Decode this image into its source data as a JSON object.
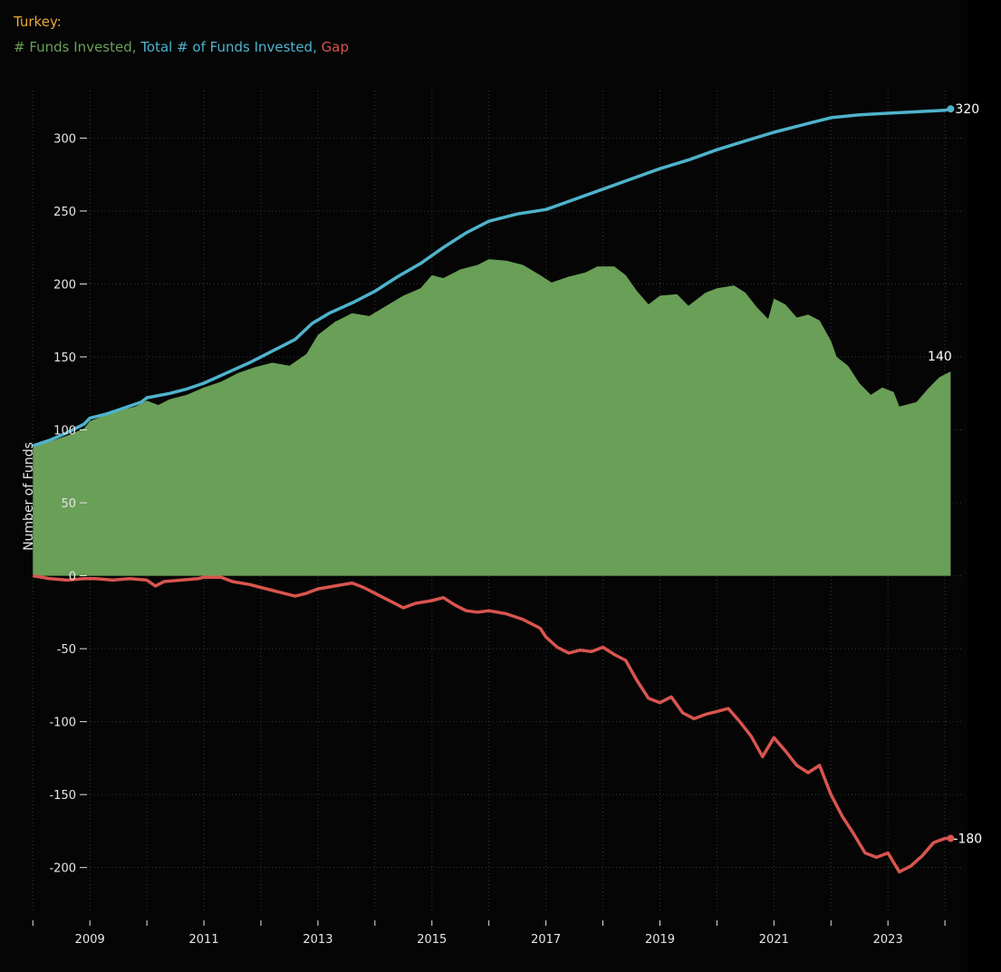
{
  "header": {
    "title": "Turkey:",
    "legend_sep": ", "
  },
  "colors": {
    "title": "#e8a935",
    "funds": "#6a9f57",
    "total": "#4fb3cc",
    "gap": "#d9554f",
    "grid": "#3a3a3a",
    "axis_text": "#e6e6e6"
  },
  "chart_data": {
    "type": "line",
    "title": "Turkey:",
    "xlabel": "",
    "ylabel": "Number of Funds",
    "ylim": [
      -230,
      340
    ],
    "xlim": [
      2007.9,
      2024.3
    ],
    "yticks": [
      300,
      250,
      200,
      150,
      100,
      50,
      0,
      -50,
      -100,
      -150,
      -200
    ],
    "xticks": [
      2008,
      2009,
      2010,
      2011,
      2012,
      2013,
      2014,
      2015,
      2016,
      2017,
      2018,
      2019,
      2020,
      2021,
      2022,
      2023,
      2024
    ],
    "xtick_labels": [
      "",
      "2009",
      "",
      "2011",
      "",
      "2013",
      "",
      "2015",
      "",
      "2017",
      "",
      "2019",
      "",
      "2021",
      "",
      "2023",
      ""
    ],
    "grid": true,
    "series": [
      {
        "name": "# Funds Invested",
        "style": "area",
        "end_label": "140",
        "points": [
          [
            2008.0,
            89
          ],
          [
            2008.3,
            92
          ],
          [
            2008.6,
            96
          ],
          [
            2008.9,
            101
          ],
          [
            2009.0,
            106
          ],
          [
            2009.2,
            109
          ],
          [
            2009.5,
            113
          ],
          [
            2009.8,
            116
          ],
          [
            2010.0,
            120
          ],
          [
            2010.2,
            117
          ],
          [
            2010.4,
            121
          ],
          [
            2010.7,
            124
          ],
          [
            2011.0,
            129
          ],
          [
            2011.3,
            133
          ],
          [
            2011.6,
            139
          ],
          [
            2011.9,
            143
          ],
          [
            2012.2,
            146
          ],
          [
            2012.5,
            144
          ],
          [
            2012.8,
            152
          ],
          [
            2013.0,
            165
          ],
          [
            2013.3,
            174
          ],
          [
            2013.6,
            180
          ],
          [
            2013.9,
            178
          ],
          [
            2014.2,
            185
          ],
          [
            2014.5,
            192
          ],
          [
            2014.8,
            197
          ],
          [
            2015.0,
            206
          ],
          [
            2015.2,
            204
          ],
          [
            2015.5,
            210
          ],
          [
            2015.8,
            213
          ],
          [
            2016.0,
            217
          ],
          [
            2016.3,
            216
          ],
          [
            2016.6,
            213
          ],
          [
            2016.9,
            206
          ],
          [
            2017.1,
            201
          ],
          [
            2017.4,
            205
          ],
          [
            2017.7,
            208
          ],
          [
            2017.9,
            212
          ],
          [
            2018.2,
            212
          ],
          [
            2018.4,
            206
          ],
          [
            2018.6,
            195
          ],
          [
            2018.8,
            186
          ],
          [
            2019.0,
            192
          ],
          [
            2019.3,
            193
          ],
          [
            2019.5,
            185
          ],
          [
            2019.8,
            194
          ],
          [
            2020.0,
            197
          ],
          [
            2020.3,
            199
          ],
          [
            2020.5,
            194
          ],
          [
            2020.7,
            184
          ],
          [
            2020.9,
            176
          ],
          [
            2021.0,
            190
          ],
          [
            2021.2,
            186
          ],
          [
            2021.4,
            177
          ],
          [
            2021.6,
            179
          ],
          [
            2021.8,
            175
          ],
          [
            2022.0,
            161
          ],
          [
            2022.1,
            150
          ],
          [
            2022.3,
            144
          ],
          [
            2022.5,
            132
          ],
          [
            2022.7,
            124
          ],
          [
            2022.9,
            129
          ],
          [
            2023.1,
            126
          ],
          [
            2023.2,
            116
          ],
          [
            2023.5,
            119
          ],
          [
            2023.7,
            128
          ],
          [
            2023.9,
            136
          ],
          [
            2024.1,
            140
          ]
        ]
      },
      {
        "name": "Total # of Funds Invested",
        "style": "line",
        "end_label": "320",
        "points": [
          [
            2008.0,
            89
          ],
          [
            2008.3,
            93
          ],
          [
            2008.6,
            98
          ],
          [
            2008.9,
            104
          ],
          [
            2009.0,
            108
          ],
          [
            2009.3,
            111
          ],
          [
            2009.6,
            115
          ],
          [
            2009.9,
            119
          ],
          [
            2010.0,
            122
          ],
          [
            2010.4,
            125
          ],
          [
            2010.7,
            128
          ],
          [
            2011.0,
            132
          ],
          [
            2011.4,
            139
          ],
          [
            2011.8,
            146
          ],
          [
            2012.2,
            154
          ],
          [
            2012.6,
            162
          ],
          [
            2012.9,
            173
          ],
          [
            2013.2,
            180
          ],
          [
            2013.6,
            187
          ],
          [
            2014.0,
            195
          ],
          [
            2014.4,
            205
          ],
          [
            2014.8,
            214
          ],
          [
            2015.2,
            225
          ],
          [
            2015.6,
            235
          ],
          [
            2016.0,
            243
          ],
          [
            2016.5,
            248
          ],
          [
            2017.0,
            251
          ],
          [
            2017.5,
            258
          ],
          [
            2018.0,
            265
          ],
          [
            2018.5,
            272
          ],
          [
            2019.0,
            279
          ],
          [
            2019.5,
            285
          ],
          [
            2020.0,
            292
          ],
          [
            2020.5,
            298
          ],
          [
            2021.0,
            304
          ],
          [
            2021.5,
            309
          ],
          [
            2022.0,
            314
          ],
          [
            2022.5,
            316
          ],
          [
            2023.0,
            317
          ],
          [
            2023.5,
            318
          ],
          [
            2024.0,
            319
          ],
          [
            2024.1,
            320
          ]
        ]
      },
      {
        "name": "Gap",
        "style": "line",
        "end_label": "-180",
        "points": [
          [
            2008.0,
            0
          ],
          [
            2008.3,
            -2
          ],
          [
            2008.6,
            -3
          ],
          [
            2008.9,
            -2
          ],
          [
            2009.1,
            -2
          ],
          [
            2009.4,
            -3
          ],
          [
            2009.7,
            -2
          ],
          [
            2010.0,
            -3
          ],
          [
            2010.15,
            -7
          ],
          [
            2010.3,
            -4
          ],
          [
            2010.6,
            -3
          ],
          [
            2010.9,
            -2
          ],
          [
            2011.0,
            -1
          ],
          [
            2011.3,
            -1
          ],
          [
            2011.5,
            -4
          ],
          [
            2011.8,
            -6
          ],
          [
            2012.0,
            -8
          ],
          [
            2012.3,
            -11
          ],
          [
            2012.6,
            -14
          ],
          [
            2012.8,
            -12
          ],
          [
            2013.0,
            -9
          ],
          [
            2013.3,
            -7
          ],
          [
            2013.6,
            -5
          ],
          [
            2013.8,
            -8
          ],
          [
            2014.0,
            -12
          ],
          [
            2014.2,
            -16
          ],
          [
            2014.5,
            -22
          ],
          [
            2014.7,
            -19
          ],
          [
            2015.0,
            -17
          ],
          [
            2015.2,
            -15
          ],
          [
            2015.4,
            -20
          ],
          [
            2015.6,
            -24
          ],
          [
            2015.8,
            -25
          ],
          [
            2016.0,
            -24
          ],
          [
            2016.3,
            -26
          ],
          [
            2016.6,
            -30
          ],
          [
            2016.9,
            -36
          ],
          [
            2017.0,
            -42
          ],
          [
            2017.2,
            -49
          ],
          [
            2017.4,
            -53
          ],
          [
            2017.6,
            -51
          ],
          [
            2017.8,
            -52
          ],
          [
            2018.0,
            -49
          ],
          [
            2018.2,
            -54
          ],
          [
            2018.4,
            -58
          ],
          [
            2018.6,
            -72
          ],
          [
            2018.8,
            -84
          ],
          [
            2019.0,
            -87
          ],
          [
            2019.2,
            -83
          ],
          [
            2019.4,
            -94
          ],
          [
            2019.6,
            -98
          ],
          [
            2019.8,
            -95
          ],
          [
            2020.0,
            -93
          ],
          [
            2020.2,
            -91
          ],
          [
            2020.4,
            -100
          ],
          [
            2020.6,
            -110
          ],
          [
            2020.8,
            -124
          ],
          [
            2021.0,
            -111
          ],
          [
            2021.2,
            -120
          ],
          [
            2021.4,
            -130
          ],
          [
            2021.6,
            -135
          ],
          [
            2021.8,
            -130
          ],
          [
            2022.0,
            -150
          ],
          [
            2022.2,
            -165
          ],
          [
            2022.4,
            -177
          ],
          [
            2022.6,
            -190
          ],
          [
            2022.8,
            -193
          ],
          [
            2023.0,
            -190
          ],
          [
            2023.2,
            -203
          ],
          [
            2023.4,
            -199
          ],
          [
            2023.6,
            -192
          ],
          [
            2023.8,
            -183
          ],
          [
            2024.0,
            -180
          ],
          [
            2024.1,
            -180
          ]
        ]
      }
    ]
  }
}
